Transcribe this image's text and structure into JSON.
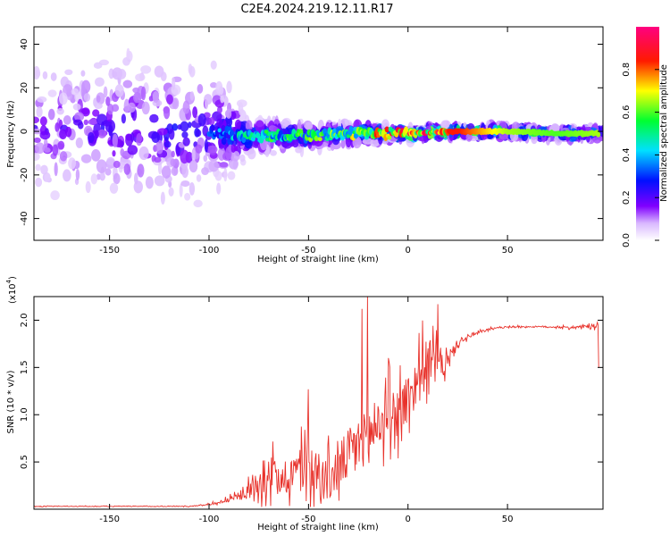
{
  "chart_data": [
    {
      "type": "heatmap",
      "title": "C2E4.2024.219.12.11.R17",
      "xlabel": "Height of straight line (km)",
      "ylabel": "Frequency (Hz)",
      "xlim": [
        -188,
        98
      ],
      "ylim": [
        -50,
        48
      ],
      "xticks": [
        -150,
        -100,
        -50,
        0,
        50
      ],
      "xtick_labels": [
        "-150",
        "-100",
        "-50",
        "0",
        "50"
      ],
      "yticks": [
        -40,
        -20,
        0,
        20,
        40
      ],
      "ytick_labels": [
        "-40",
        "-20",
        "0",
        "20",
        "40"
      ],
      "ridge": {
        "description": "narrowband signal ridge near 0 Hz",
        "x_km": [
          -188,
          -150,
          -100,
          -80,
          -50,
          -25,
          0,
          25,
          50,
          75,
          96
        ],
        "freq_hz": [
          1,
          1,
          0,
          -2,
          -2,
          -1,
          -1,
          0,
          0,
          -1,
          -1
        ],
        "amplitude": [
          0.2,
          0.25,
          0.3,
          0.45,
          0.5,
          0.6,
          0.75,
          0.8,
          0.6,
          0.55,
          0.6
        ],
        "spread_hz": [
          45,
          45,
          40,
          10,
          7,
          5,
          3,
          3,
          3,
          3,
          3
        ]
      },
      "colorbar": {
        "label": "Normalized spectral amplitude",
        "range": [
          0,
          1
        ],
        "ticks": [
          0.0,
          0.2,
          0.4,
          0.6,
          0.8
        ],
        "tick_labels": [
          "0.0",
          "0.2",
          "0.4",
          "0.6",
          "0.8"
        ]
      },
      "colors": [
        "#ffffff",
        "#6a00ff",
        "#0000ff",
        "#00e5ff",
        "#00ff40",
        "#ffff00",
        "#ff2000",
        "#ff0080"
      ]
    },
    {
      "type": "line",
      "xlabel": "Height of straight line (km)",
      "ylabel": "SNR (10 * v/v)",
      "exponent_label": "(x10",
      "exponent_power": "4",
      "exponent_close": ")",
      "xlim": [
        -188,
        98
      ],
      "ylim": [
        0,
        2.25
      ],
      "xticks": [
        -150,
        -100,
        -50,
        0,
        50
      ],
      "xtick_labels": [
        "-150",
        "-100",
        "-50",
        "0",
        "50"
      ],
      "yticks": [
        0.5,
        1.0,
        1.5,
        2.0
      ],
      "ytick_labels": [
        "0.5",
        "1.0",
        "1.5",
        "2.0"
      ],
      "series": [
        {
          "name": "SNR",
          "color": "#e8322b",
          "x": [
            -188,
            -150,
            -110,
            -100,
            -95,
            -90,
            -85,
            -80,
            -75,
            -70,
            -65,
            -60,
            -55,
            -50,
            -45,
            -40,
            -35,
            -30,
            -25,
            -20,
            -15,
            -10,
            -5,
            0,
            5,
            10,
            15,
            20,
            25,
            30,
            40,
            50,
            60,
            70,
            80,
            90,
            96
          ],
          "y": [
            0.03,
            0.03,
            0.03,
            0.05,
            0.07,
            0.1,
            0.13,
            0.18,
            0.3,
            0.35,
            0.33,
            0.32,
            0.38,
            0.45,
            0.35,
            0.28,
            0.4,
            0.55,
            0.65,
            0.75,
            0.85,
            0.95,
            1.0,
            1.15,
            1.35,
            1.55,
            1.5,
            1.55,
            1.75,
            1.82,
            1.9,
            1.93,
            1.93,
            1.93,
            1.92,
            1.93,
            1.94
          ],
          "noise": [
            0.004,
            0.004,
            0.005,
            0.01,
            0.02,
            0.03,
            0.05,
            0.1,
            0.2,
            0.25,
            0.25,
            0.25,
            0.3,
            0.35,
            0.3,
            0.3,
            0.32,
            0.35,
            0.35,
            0.35,
            0.35,
            0.35,
            0.35,
            0.35,
            0.35,
            0.3,
            0.25,
            0.15,
            0.05,
            0.03,
            0.015,
            0.01,
            0.01,
            0.01,
            0.015,
            0.02,
            0.05
          ],
          "spikes": [
            {
              "x": -20.5,
              "y": 2.25
            },
            {
              "x": -23,
              "y": 2.12
            },
            {
              "x": 15,
              "y": 2.17
            },
            {
              "x": -50,
              "y": 1.27
            },
            {
              "x": -10,
              "y": 1.6
            },
            {
              "x": 97,
              "y": 1.5
            }
          ]
        }
      ]
    }
  ]
}
